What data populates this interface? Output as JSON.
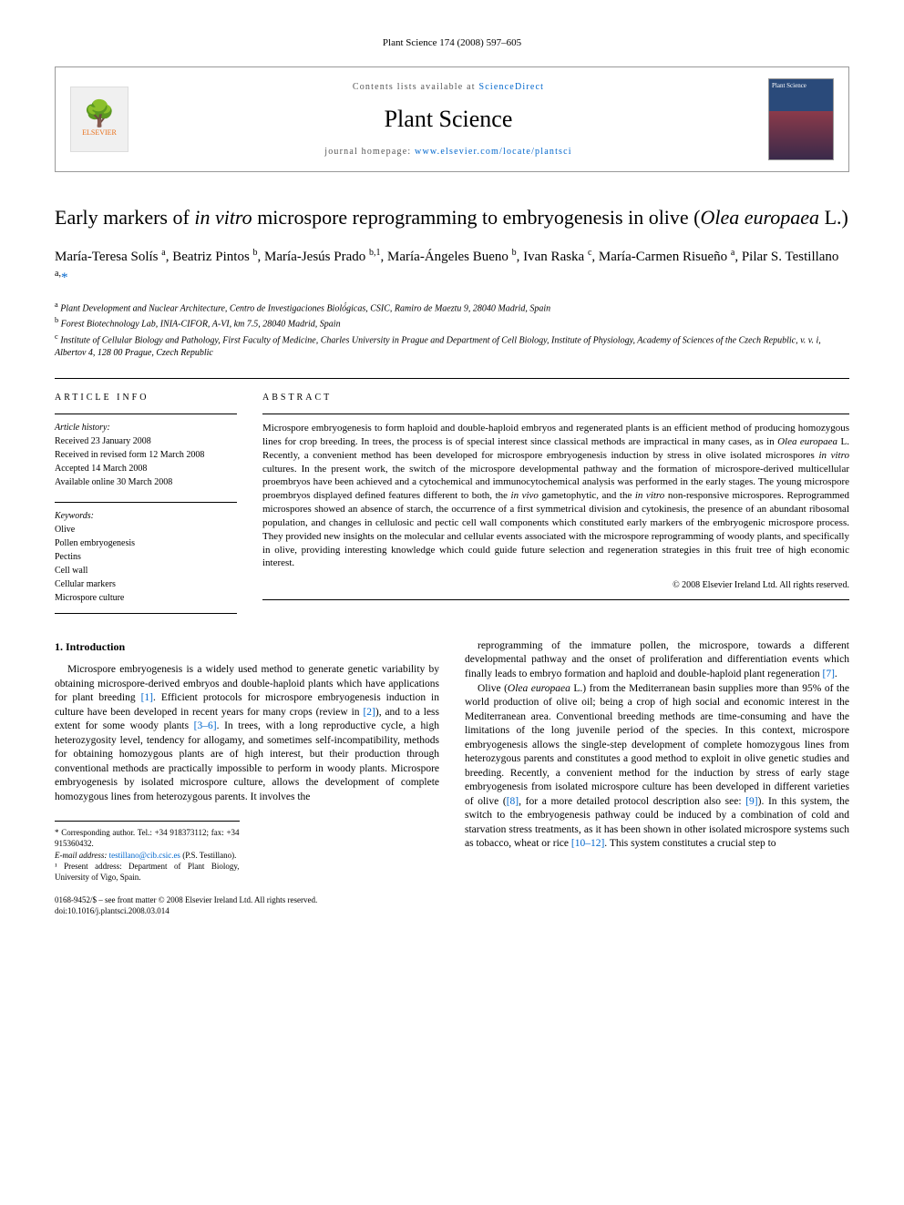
{
  "journal_ref": "Plant Science 174 (2008) 597–605",
  "header": {
    "contents_prefix": "Contents lists available at ",
    "contents_link": "ScienceDirect",
    "journal_name": "Plant Science",
    "homepage_prefix": "journal homepage: ",
    "homepage_url": "www.elsevier.com/locate/plantsci",
    "elsevier_label": "ELSEVIER",
    "cover_label": "Plant Science"
  },
  "title": {
    "pre": "Early markers of ",
    "italic1": "in vitro",
    "mid": " microspore reprogramming to embryogenesis in olive (",
    "italic2": "Olea europaea",
    "post": " L.)"
  },
  "authors_html": "María-Teresa Solís <sup>a</sup>, Beatriz Pintos <sup>b</sup>, María-Jesús Prado <sup>b,1</sup>, María-Ángeles Bueno <sup>b</sup>, Ivan Raska <sup>c</sup>, María-Carmen Risueño <sup>a</sup>, Pilar S. Testillano <sup>a,</sup>",
  "corr_mark": "*",
  "affiliations": [
    {
      "sup": "a",
      "text": "Plant Development and Nuclear Architecture, Centro de Investigaciones Bioló́gicas, CSIC, Ramiro de Maeztu 9, 28040 Madrid, Spain"
    },
    {
      "sup": "b",
      "text": "Forest Biotechnology Lab, INIA-CIFOR, A-VI, km 7.5, 28040 Madrid, Spain"
    },
    {
      "sup": "c",
      "text": "Institute of Cellular Biology and Pathology, First Faculty of Medicine, Charles University in Prague and Department of Cell Biology, Institute of Physiology, Academy of Sciences of the Czech Republic, v. v. i, Albertov 4, 128 00 Prague, Czech Republic"
    }
  ],
  "info": {
    "heading": "ARTICLE INFO",
    "history_label": "Article history:",
    "history": [
      "Received 23 January 2008",
      "Received in revised form 12 March 2008",
      "Accepted 14 March 2008",
      "Available online 30 March 2008"
    ],
    "keywords_label": "Keywords:",
    "keywords": [
      "Olive",
      "Pollen embryogenesis",
      "Pectins",
      "Cell wall",
      "Cellular markers",
      "Microspore culture"
    ]
  },
  "abstract": {
    "heading": "ABSTRACT",
    "text": "Microspore embryogenesis to form haploid and double-haploid embryos and regenerated plants is an efficient method of producing homozygous lines for crop breeding. In trees, the process is of special interest since classical methods are impractical in many cases, as in Olea europaea L. Recently, a convenient method has been developed for microspore embryogenesis induction by stress in olive isolated microspores in vitro cultures. In the present work, the switch of the microspore developmental pathway and the formation of microspore-derived multicellular proembryos have been achieved and a cytochemical and immunocytochemical analysis was performed in the early stages. The young microspore proembryos displayed defined features different to both, the in vivo gametophytic, and the in vitro non-responsive microspores. Reprogrammed microspores showed an absence of starch, the occurrence of a first symmetrical division and cytokinesis, the presence of an abundant ribosomal population, and changes in cellulosic and pectic cell wall components which constituted early markers of the embryogenic microspore process. They provided new insights on the molecular and cellular events associated with the microspore reprogramming of woody plants, and specifically in olive, providing interesting knowledge which could guide future selection and regeneration strategies in this fruit tree of high economic interest.",
    "copyright": "© 2008 Elsevier Ireland Ltd. All rights reserved."
  },
  "body": {
    "section_heading": "1. Introduction",
    "col1_p1": "Microspore embryogenesis is a widely used method to generate genetic variability by obtaining microspore-derived embryos and double-haploid plants which have applications for plant breeding [1]. Efficient protocols for microspore embryogenesis induction in culture have been developed in recent years for many crops (review in [2]), and to a less extent for some woody plants [3–6]. In trees, with a long reproductive cycle, a high heterozygosity level, tendency for allogamy, and sometimes self-incompatibility, methods for obtaining homozygous plants are of high interest, but their production through conventional methods are practically impossible to perform in woody plants. Microspore embryogenesis by isolated microspore culture, allows the development of complete homozygous lines from heterozygous parents. It involves the",
    "col2_p1": "reprogramming of the immature pollen, the microspore, towards a different developmental pathway and the onset of proliferation and differentiation events which finally leads to embryo formation and haploid and double-haploid plant regeneration [7].",
    "col2_p2": "Olive (Olea europaea L.) from the Mediterranean basin supplies more than 95% of the world production of olive oil; being a crop of high social and economic interest in the Mediterranean area. Conventional breeding methods are time-consuming and have the limitations of the long juvenile period of the species. In this context, microspore embryogenesis allows the single-step development of complete homozygous lines from heterozygous parents and constitutes a good method to exploit in olive genetic studies and breeding. Recently, a convenient method for the induction by stress of early stage embryogenesis from isolated microspore culture has been developed in different varieties of olive ([8], for a more detailed protocol description also see: [9]). In this system, the switch to the embryogenesis pathway could be induced by a combination of cold and starvation stress treatments, as it has been shown in other isolated microspore systems such as tobacco, wheat or rice [10–12]. This system constitutes a crucial step to"
  },
  "footnotes": {
    "corr": "* Corresponding author. Tel.: +34 918373112; fax: +34 915360432.",
    "email_label": "E-mail address: ",
    "email": "testillano@cib.csic.es",
    "email_who": " (P.S. Testillano).",
    "present": "¹ Present address: Department of Plant Biology, University of Vigo, Spain."
  },
  "footer": {
    "line1": "0168-9452/$ – see front matter © 2008 Elsevier Ireland Ltd. All rights reserved.",
    "line2": "doi:10.1016/j.plantsci.2008.03.014"
  },
  "refs": {
    "r1": "[1]",
    "r2": "[2]",
    "r36": "[3–6]",
    "r7": "[7]",
    "r8": "[8]",
    "r9": "[9]",
    "r1012": "[10–12]"
  },
  "colors": {
    "link": "#0066cc",
    "elsevier_orange": "#e9711c",
    "text": "#000000",
    "bg": "#ffffff",
    "border": "#999999"
  }
}
